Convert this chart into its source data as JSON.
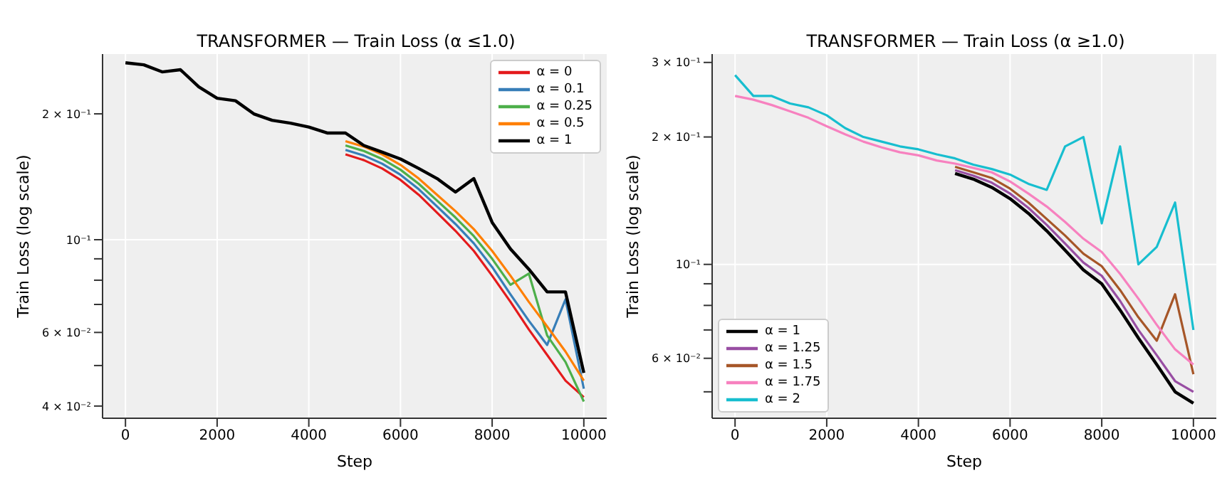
{
  "chart_data": [
    {
      "type": "line",
      "title": "TRANSFORMER — Train Loss (α ≤1.0)",
      "xlabel": "Step",
      "ylabel": "Train Loss (log scale)",
      "log": "y",
      "grid": true,
      "legend": "top right",
      "marker": "none",
      "line_style": "solid",
      "x": [
        0,
        400,
        800,
        1200,
        1600,
        2000,
        2400,
        2800,
        3200,
        3600,
        4000,
        4400,
        4800,
        5200,
        5600,
        6000,
        6400,
        6800,
        7200,
        7600,
        8000,
        8400,
        8800,
        9200,
        9600,
        10000
      ],
      "xlim": [
        -500,
        10500
      ],
      "xticks": [
        0,
        2000,
        4000,
        6000,
        8000,
        10000
      ],
      "ylim": [
        0.0374,
        0.278
      ],
      "yticks": [
        {
          "value": 0.04,
          "label": "4 × 10⁻²"
        },
        {
          "value": 0.05,
          "label": null
        },
        {
          "value": 0.06,
          "label": "6 × 10⁻²"
        },
        {
          "value": 0.07,
          "label": null
        },
        {
          "value": 0.08,
          "label": null
        },
        {
          "value": 0.09,
          "label": null
        },
        {
          "value": 0.1,
          "label": "10⁻¹"
        },
        {
          "value": 0.2,
          "label": "2 × 10⁻¹"
        }
      ],
      "series": [
        {
          "name": "α = 0",
          "color": "#e41a1c",
          "values": [
            null,
            null,
            null,
            null,
            null,
            null,
            null,
            null,
            null,
            null,
            null,
            null,
            0.16,
            0.155,
            0.148,
            0.139,
            0.128,
            0.116,
            0.105,
            0.094,
            0.082,
            0.071,
            0.061,
            0.053,
            0.046,
            0.042
          ]
        },
        {
          "name": "α = 0.1",
          "color": "#377eb8",
          "values": [
            null,
            null,
            null,
            null,
            null,
            null,
            null,
            null,
            null,
            null,
            null,
            null,
            0.164,
            0.159,
            0.152,
            0.143,
            0.132,
            0.12,
            0.109,
            0.098,
            0.086,
            0.074,
            0.064,
            0.056,
            0.072,
            0.044
          ]
        },
        {
          "name": "α = 0.25",
          "color": "#4daf4a",
          "values": [
            null,
            null,
            null,
            null,
            null,
            null,
            null,
            null,
            null,
            null,
            null,
            null,
            0.168,
            0.163,
            0.156,
            0.147,
            0.136,
            0.124,
            0.113,
            0.102,
            0.09,
            0.078,
            0.083,
            0.059,
            0.051,
            0.041
          ]
        },
        {
          "name": "α = 0.5",
          "color": "#ff7f00",
          "values": [
            null,
            null,
            null,
            null,
            null,
            null,
            null,
            null,
            null,
            null,
            null,
            null,
            0.172,
            0.167,
            0.16,
            0.151,
            0.14,
            0.128,
            0.117,
            0.106,
            0.094,
            0.082,
            0.071,
            0.062,
            0.054,
            0.046
          ]
        },
        {
          "name": "α = 1",
          "color": "#000000",
          "values": [
            0.265,
            0.262,
            0.252,
            0.255,
            0.232,
            0.218,
            0.215,
            0.2,
            0.193,
            0.19,
            0.186,
            0.18,
            0.18,
            0.168,
            0.162,
            0.156,
            0.148,
            0.14,
            0.13,
            0.14,
            0.11,
            0.095,
            0.085,
            0.075,
            0.075,
            0.048
          ]
        }
      ]
    },
    {
      "type": "line",
      "title": "TRANSFORMER — Train Loss (α ≥1.0)",
      "xlabel": "Step",
      "ylabel": "Train Loss (log scale)",
      "log": "y",
      "grid": true,
      "legend": "bottom left",
      "marker": "none",
      "line_style": "solid",
      "x": [
        0,
        400,
        800,
        1200,
        1600,
        2000,
        2400,
        2800,
        3200,
        3600,
        4000,
        4400,
        4800,
        5200,
        5600,
        6000,
        6400,
        6800,
        7200,
        7600,
        8000,
        8400,
        8800,
        9200,
        9600,
        10000
      ],
      "xlim": [
        -500,
        10500
      ],
      "xticks": [
        0,
        2000,
        4000,
        6000,
        8000,
        10000
      ],
      "ylim": [
        0.0433,
        0.314
      ],
      "yticks": [
        {
          "value": 0.05,
          "label": null
        },
        {
          "value": 0.06,
          "label": "6 × 10⁻²"
        },
        {
          "value": 0.07,
          "label": null
        },
        {
          "value": 0.08,
          "label": null
        },
        {
          "value": 0.09,
          "label": null
        },
        {
          "value": 0.1,
          "label": "10⁻¹"
        },
        {
          "value": 0.2,
          "label": "2 × 10⁻¹"
        },
        {
          "value": 0.3,
          "label": "3 × 10⁻¹"
        }
      ],
      "series": [
        {
          "name": "α = 1",
          "color": "#000000",
          "values": [
            null,
            null,
            null,
            null,
            null,
            null,
            null,
            null,
            null,
            null,
            null,
            null,
            0.164,
            0.159,
            0.152,
            0.143,
            0.132,
            0.12,
            0.108,
            0.097,
            0.09,
            0.078,
            0.067,
            0.058,
            0.05,
            0.047
          ]
        },
        {
          "name": "α = 1.25",
          "color": "#984ea3",
          "values": [
            null,
            null,
            null,
            null,
            null,
            null,
            null,
            null,
            null,
            null,
            null,
            null,
            0.167,
            0.162,
            0.156,
            0.147,
            0.136,
            0.124,
            0.112,
            0.101,
            0.094,
            0.082,
            0.07,
            0.061,
            0.053,
            0.05
          ]
        },
        {
          "name": "α = 1.5",
          "color": "#a65628",
          "values": [
            null,
            null,
            null,
            null,
            null,
            null,
            null,
            null,
            null,
            null,
            null,
            null,
            0.17,
            0.165,
            0.16,
            0.151,
            0.14,
            0.128,
            0.117,
            0.106,
            0.099,
            0.087,
            0.075,
            0.066,
            0.085,
            0.055
          ]
        },
        {
          "name": "α = 1.75",
          "color": "#f781bf",
          "values": [
            0.25,
            0.245,
            0.238,
            0.23,
            0.222,
            0.212,
            0.203,
            0.195,
            0.189,
            0.184,
            0.181,
            0.176,
            0.173,
            0.169,
            0.165,
            0.157,
            0.147,
            0.137,
            0.126,
            0.115,
            0.107,
            0.095,
            0.083,
            0.072,
            0.063,
            0.058
          ]
        },
        {
          "name": "α = 2",
          "color": "#17becf",
          "values": [
            0.28,
            0.25,
            0.25,
            0.24,
            0.235,
            0.225,
            0.21,
            0.2,
            0.195,
            0.19,
            0.187,
            0.182,
            0.178,
            0.172,
            0.168,
            0.163,
            0.155,
            0.15,
            0.19,
            0.2,
            0.125,
            0.19,
            0.1,
            0.11,
            0.14,
            0.07
          ]
        }
      ]
    }
  ]
}
